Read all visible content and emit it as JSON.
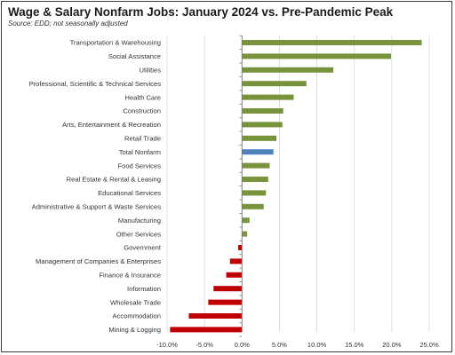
{
  "chart_data": {
    "type": "bar",
    "orientation": "horizontal",
    "title": "Wage & Salary Nonfarm Jobs:  January 2024 vs. Pre-Pandemic Peak",
    "subtitle": "Source: EDD; not seasonally adjusted",
    "categories": [
      "Transportation & Warehousing",
      "Social Assistance",
      "Utilities",
      "Professional, Scientific & Technical Services",
      "Health Care",
      "Construction",
      "Arts, Entertainment & Recreation",
      "Retail Trade",
      "Total Nonfarm",
      "Food Services",
      "Real Estate & Rental & Leasing",
      "Educational Services",
      "Administrative & Support & Waste Services",
      "Manufacturing",
      "Other Services",
      "Government",
      "Management of Companies & Enterprises",
      "Finance & Insurance",
      "Information",
      "Wholesale Trade",
      "Accommodation",
      "Mining & Logging"
    ],
    "values": [
      24.0,
      19.9,
      12.2,
      8.6,
      6.9,
      5.5,
      5.4,
      4.6,
      4.2,
      3.7,
      3.5,
      3.2,
      2.9,
      1.0,
      0.7,
      -0.5,
      -1.6,
      -2.1,
      -3.8,
      -4.5,
      -7.1,
      -9.6
    ],
    "unit": "%",
    "xlim": [
      -10,
      25
    ],
    "xticks": [
      -10,
      -5,
      0,
      5,
      10,
      15,
      20,
      25
    ],
    "xtick_labels": [
      "-10.0%",
      "-5.0%",
      "0.0%",
      "5.0%",
      "10.0%",
      "15.0%",
      "20.0%",
      "25.0%"
    ],
    "grid": "vertical",
    "legend": "none",
    "colors": {
      "positive": "#77933c",
      "highlight": "#4f81bd",
      "negative": "#c00000",
      "grid": "#d9d9d9",
      "axis": "#7f7f7f"
    },
    "highlight_category": "Total Nonfarm"
  }
}
